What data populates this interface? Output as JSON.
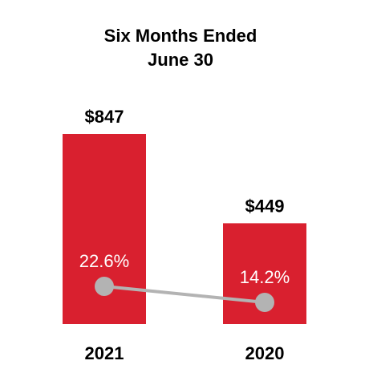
{
  "chart_data": {
    "type": "bar",
    "title": [
      "Six Months Ended",
      "June 30"
    ],
    "categories": [
      "2021",
      "2020"
    ],
    "values": [
      847,
      449
    ],
    "value_labels": [
      "$847",
      "$449"
    ],
    "ylim": [
      0,
      1000
    ],
    "grid": false,
    "legend": "none",
    "overlay_series": {
      "type": "line",
      "values": [
        22.6,
        14.2
      ],
      "labels": [
        "22.6%",
        "14.2%"
      ]
    },
    "colors": {
      "bar": "#d9202f",
      "line": "#b3b3b3",
      "marker": "#b3b3b3",
      "text": "#000000",
      "overlay_label": "#ffffff"
    }
  }
}
